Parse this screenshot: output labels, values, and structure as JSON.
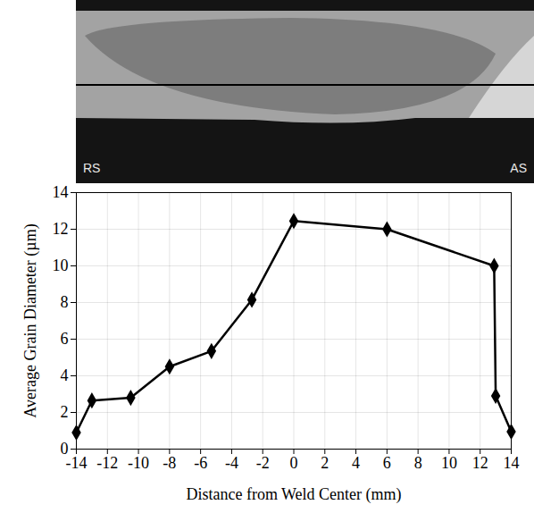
{
  "chart_data": {
    "type": "line",
    "x": [
      -14,
      -13,
      -10.5,
      -8,
      -5.3,
      -2.7,
      0,
      6,
      12.9,
      13,
      14
    ],
    "values": [
      0.9,
      2.65,
      2.8,
      4.5,
      5.35,
      8.15,
      12.45,
      12,
      10,
      2.9,
      0.95
    ],
    "color": "#000000",
    "marker": "diamond",
    "xlabel": "Distance from Weld Center (mm)",
    "ylabel": "Average Grain Diameter (µm)",
    "xlim": [
      -14,
      14
    ],
    "xticks": [
      -14,
      -12,
      -10,
      -8,
      -6,
      -4,
      -2,
      0,
      2,
      4,
      6,
      8,
      10,
      12,
      14
    ],
    "ylim": [
      0,
      14
    ],
    "yticks": [
      0,
      2,
      4,
      6,
      8,
      10,
      12,
      14
    ],
    "grid": true,
    "annotations": [
      "RS",
      "AS"
    ]
  }
}
